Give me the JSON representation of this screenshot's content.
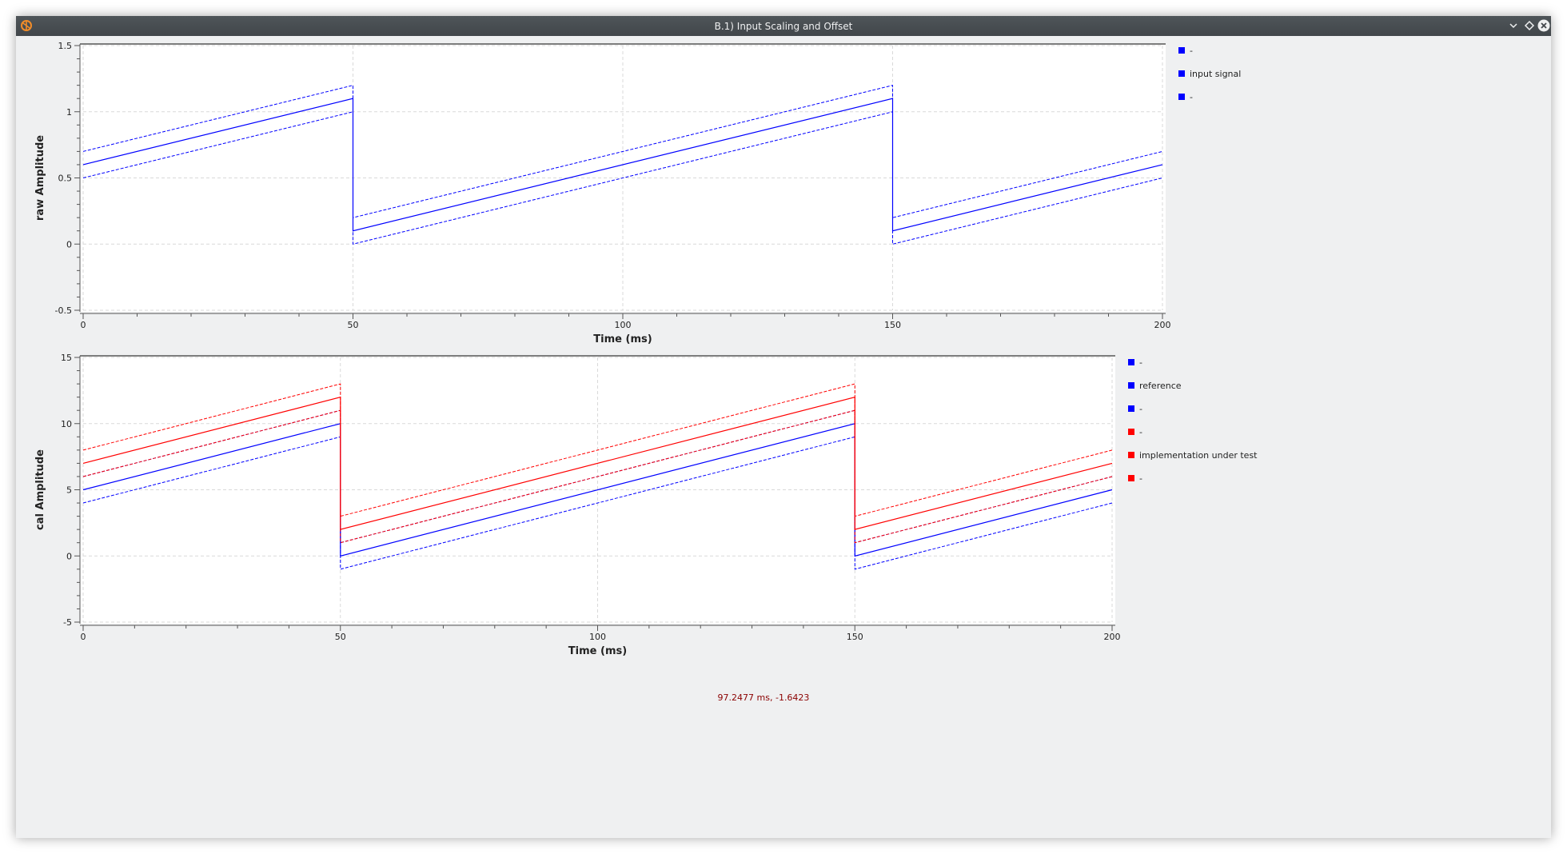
{
  "window": {
    "title": "B.1) Input Scaling and Offset",
    "icon": "app-icon",
    "buttons": [
      "minimize-icon",
      "restore-icon",
      "close-icon"
    ]
  },
  "colors": {
    "blue": "#0000ff",
    "red": "#ff0000",
    "darkred": "#8b0000",
    "grid": "#d9d9d9",
    "axis": "#555555"
  },
  "cursor_readout": "97.2477 ms, -1.6423",
  "chart_data": [
    {
      "type": "line",
      "xlabel": "Time (ms)",
      "ylabel": "raw Amplitude",
      "xlim": [
        0,
        200
      ],
      "ylim": [
        -0.5,
        1.5
      ],
      "x_ticks": [
        0,
        50,
        100,
        150,
        200
      ],
      "x_tick_labels": [
        "0",
        "50",
        "100",
        "150",
        "200"
      ],
      "y_ticks": [
        -0.5,
        0,
        0.5,
        1,
        1.5
      ],
      "y_tick_labels": [
        "-0.5",
        "0",
        "0.5",
        "1",
        "1.5"
      ],
      "grid": true,
      "legend_position": "right",
      "legend": [
        "-",
        "input signal",
        "-"
      ],
      "series": [
        {
          "name": "-",
          "color": "blue",
          "dashed": true,
          "x": [
            0,
            50,
            50,
            150,
            150,
            200
          ],
          "y": [
            0.7,
            1.2,
            0.2,
            1.2,
            0.2,
            0.7
          ]
        },
        {
          "name": "input signal",
          "color": "blue",
          "dashed": false,
          "x": [
            0,
            50,
            50,
            150,
            150,
            200
          ],
          "y": [
            0.6,
            1.1,
            0.1,
            1.1,
            0.1,
            0.6
          ]
        },
        {
          "name": "-",
          "color": "blue",
          "dashed": true,
          "x": [
            0,
            50,
            50,
            150,
            150,
            200
          ],
          "y": [
            0.5,
            1.0,
            0.0,
            1.0,
            0.0,
            0.5
          ]
        }
      ]
    },
    {
      "type": "line",
      "xlabel": "Time (ms)",
      "ylabel": "cal Amplitude",
      "xlim": [
        0,
        200
      ],
      "ylim": [
        -5,
        15
      ],
      "x_ticks": [
        0,
        50,
        100,
        150,
        200
      ],
      "x_tick_labels": [
        "0",
        "50",
        "100",
        "150",
        "200"
      ],
      "y_ticks": [
        -5,
        0,
        5,
        10,
        15
      ],
      "y_tick_labels": [
        "-5",
        "0",
        "5",
        "10",
        "15"
      ],
      "grid": true,
      "legend_position": "right",
      "legend": [
        "-",
        "reference",
        "-",
        "-",
        "implementation under test",
        "-"
      ],
      "series": [
        {
          "name": "-",
          "color": "blue",
          "dashed": true,
          "x": [
            0,
            50,
            50,
            150,
            150,
            200
          ],
          "y": [
            6,
            11,
            1,
            11,
            1,
            6
          ]
        },
        {
          "name": "reference",
          "color": "blue",
          "dashed": false,
          "x": [
            0,
            50,
            50,
            150,
            150,
            200
          ],
          "y": [
            5,
            10,
            0,
            10,
            0,
            5
          ]
        },
        {
          "name": "-",
          "color": "blue",
          "dashed": true,
          "x": [
            0,
            50,
            50,
            150,
            150,
            200
          ],
          "y": [
            4,
            9,
            -1,
            9,
            -1,
            4
          ]
        },
        {
          "name": "-",
          "color": "red",
          "dashed": true,
          "x": [
            0,
            50,
            50,
            150,
            150,
            200
          ],
          "y": [
            8,
            13,
            3,
            13,
            3,
            8
          ]
        },
        {
          "name": "implementation under test",
          "color": "red",
          "dashed": false,
          "x": [
            0,
            50,
            50,
            150,
            150,
            200
          ],
          "y": [
            7,
            12,
            2,
            12,
            2,
            7
          ]
        },
        {
          "name": "-",
          "color": "red",
          "dashed": true,
          "x": [
            0,
            50,
            50,
            150,
            150,
            200
          ],
          "y": [
            6,
            11,
            1,
            11,
            1,
            6
          ]
        }
      ]
    }
  ]
}
